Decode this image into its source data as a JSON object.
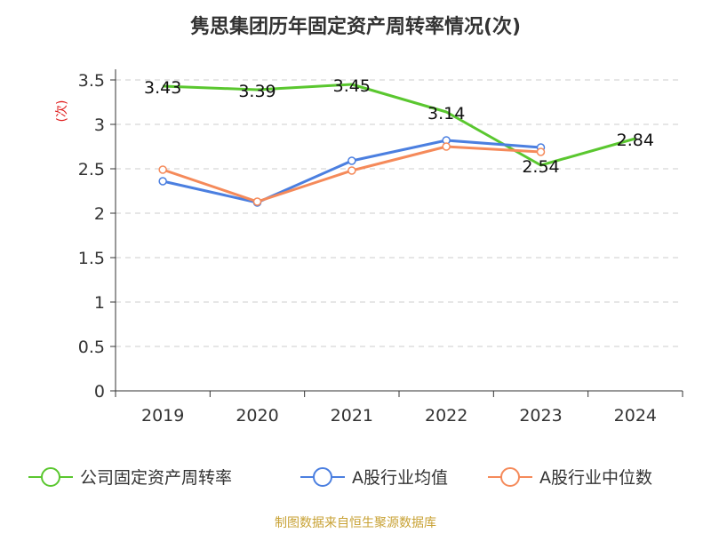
{
  "source_text": "制图数据来自恒生聚源数据库",
  "chart_data": {
    "type": "line",
    "title": "隽思集团历年固定资产周转率情况(次)",
    "ylabel": "(次)",
    "xlabel": "",
    "categories": [
      "2019",
      "2020",
      "2021",
      "2022",
      "2023",
      "2024"
    ],
    "ylim": [
      0,
      3.5
    ],
    "yticks": [
      0,
      0.5,
      1,
      1.5,
      2,
      2.5,
      3,
      3.5
    ],
    "ytick_labels": [
      "0",
      "0.5",
      "1",
      "1.5",
      "2",
      "2.5",
      "3",
      "3.5"
    ],
    "grid": "horizontal dashed",
    "legend_position": "bottom",
    "series": [
      {
        "name": "公司固定资产周转率",
        "color": "#5ac72f",
        "values": [
          3.43,
          3.39,
          3.45,
          3.14,
          2.54,
          2.84
        ],
        "labels": [
          "3.43",
          "3.39",
          "3.45",
          "3.14",
          "2.54",
          "2.84"
        ],
        "show_labels": true,
        "show_markers": false
      },
      {
        "name": "A股行业均值",
        "color": "#4b7fe0",
        "values": [
          2.36,
          2.12,
          2.59,
          2.82,
          2.74,
          null
        ],
        "show_labels": false,
        "show_markers": true
      },
      {
        "name": "A股行业中位数",
        "color": "#f58a5a",
        "values": [
          2.49,
          2.13,
          2.48,
          2.75,
          2.69,
          null
        ],
        "show_labels": false,
        "show_markers": true
      }
    ]
  }
}
